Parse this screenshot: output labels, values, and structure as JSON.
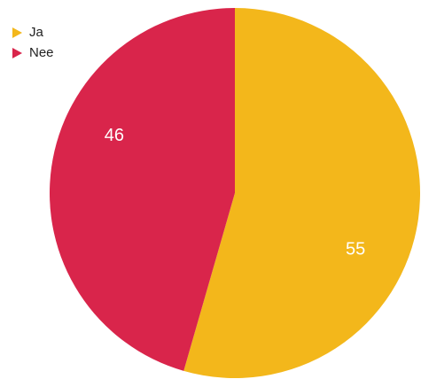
{
  "chart_data": {
    "type": "pie",
    "categories": [
      "Ja",
      "Nee"
    ],
    "values": [
      55,
      46
    ],
    "colors": [
      "#F3B71B",
      "#D9254B"
    ],
    "legend": "top-left"
  }
}
